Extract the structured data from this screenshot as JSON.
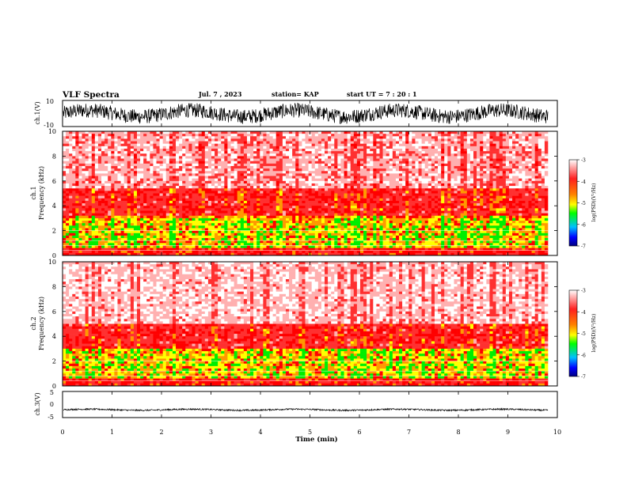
{
  "header": {
    "title": "VLF Spectra",
    "date": "Jul. 7 , 2023",
    "station": "station= KAP",
    "start": "start UT =  7 : 20 : 1"
  },
  "chart_data": [
    {
      "type": "line",
      "id": "ch1_waveform",
      "ylabel": "ch.1(V)",
      "ylim": [
        -10,
        10
      ],
      "yticks": [
        "10",
        "-10"
      ],
      "xlim": [
        0,
        10
      ],
      "description_values": {
        "baseline_V": 0,
        "amplitude_V": 7
      }
    },
    {
      "type": "heatmap",
      "id": "ch1_spectrogram",
      "ylabel": "ch.1\nFrequency (kHz)",
      "ylabel_line1": "ch.1",
      "ylabel_line2": "Frequency (kHz)",
      "ylim": [
        0,
        10
      ],
      "yticks": [
        "0",
        "2",
        "4",
        "6",
        "8",
        "10"
      ],
      "xlim": [
        0,
        9.8
      ],
      "colorbar": {
        "label": "log(PSD)(V²/Hz)",
        "range": [
          -7,
          -3
        ],
        "ticks": [
          "-3",
          "-4",
          "-5",
          "-6",
          "-7"
        ]
      },
      "bands": [
        {
          "from_kHz": 0,
          "to_kHz": 3.2,
          "level": -4.2
        },
        {
          "from_kHz": 3.2,
          "to_kHz": 5.5,
          "level": -3.8
        },
        {
          "from_kHz": 5.5,
          "to_kHz": 10,
          "level": -3.3
        }
      ]
    },
    {
      "type": "heatmap",
      "id": "ch2_spectrogram",
      "ylabel": "ch.2\nFrequency (kHz)",
      "ylabel_line1": "ch.2",
      "ylabel_line2": "Frequency (kHz)",
      "ylim": [
        0,
        10
      ],
      "yticks": [
        "0",
        "2",
        "4",
        "6",
        "8",
        "10"
      ],
      "xlim": [
        0,
        9.8
      ],
      "colorbar": {
        "label": "log(PSD)(V²/Hz)",
        "range": [
          -7,
          -3
        ],
        "ticks": [
          "-3",
          "-4",
          "-5",
          "-6",
          "-7"
        ]
      },
      "bands": [
        {
          "from_kHz": 0,
          "to_kHz": 3.0,
          "level": -4.2
        },
        {
          "from_kHz": 3.0,
          "to_kHz": 5.0,
          "level": -3.8
        },
        {
          "from_kHz": 5.0,
          "to_kHz": 10,
          "level": -3.2
        }
      ]
    },
    {
      "type": "line",
      "id": "ch3_waveform",
      "ylabel": "ch.3(V)",
      "ylim": [
        -5,
        5
      ],
      "yticks": [
        "5",
        "0",
        "-5"
      ],
      "xlim": [
        0,
        10
      ],
      "description_values": {
        "baseline_V": -2,
        "amplitude_V": 0.6
      }
    }
  ],
  "x_axis": {
    "label": "Time (min)",
    "ticks": [
      "0",
      "1",
      "2",
      "3",
      "4",
      "5",
      "6",
      "7",
      "8",
      "9",
      "10"
    ],
    "range": [
      0,
      10
    ]
  },
  "colors": {
    "high": "#ff0000",
    "mid": "#ffff00",
    "low_mid": "#00ff00",
    "low": "#0000ff",
    "background": "#ffffff"
  }
}
